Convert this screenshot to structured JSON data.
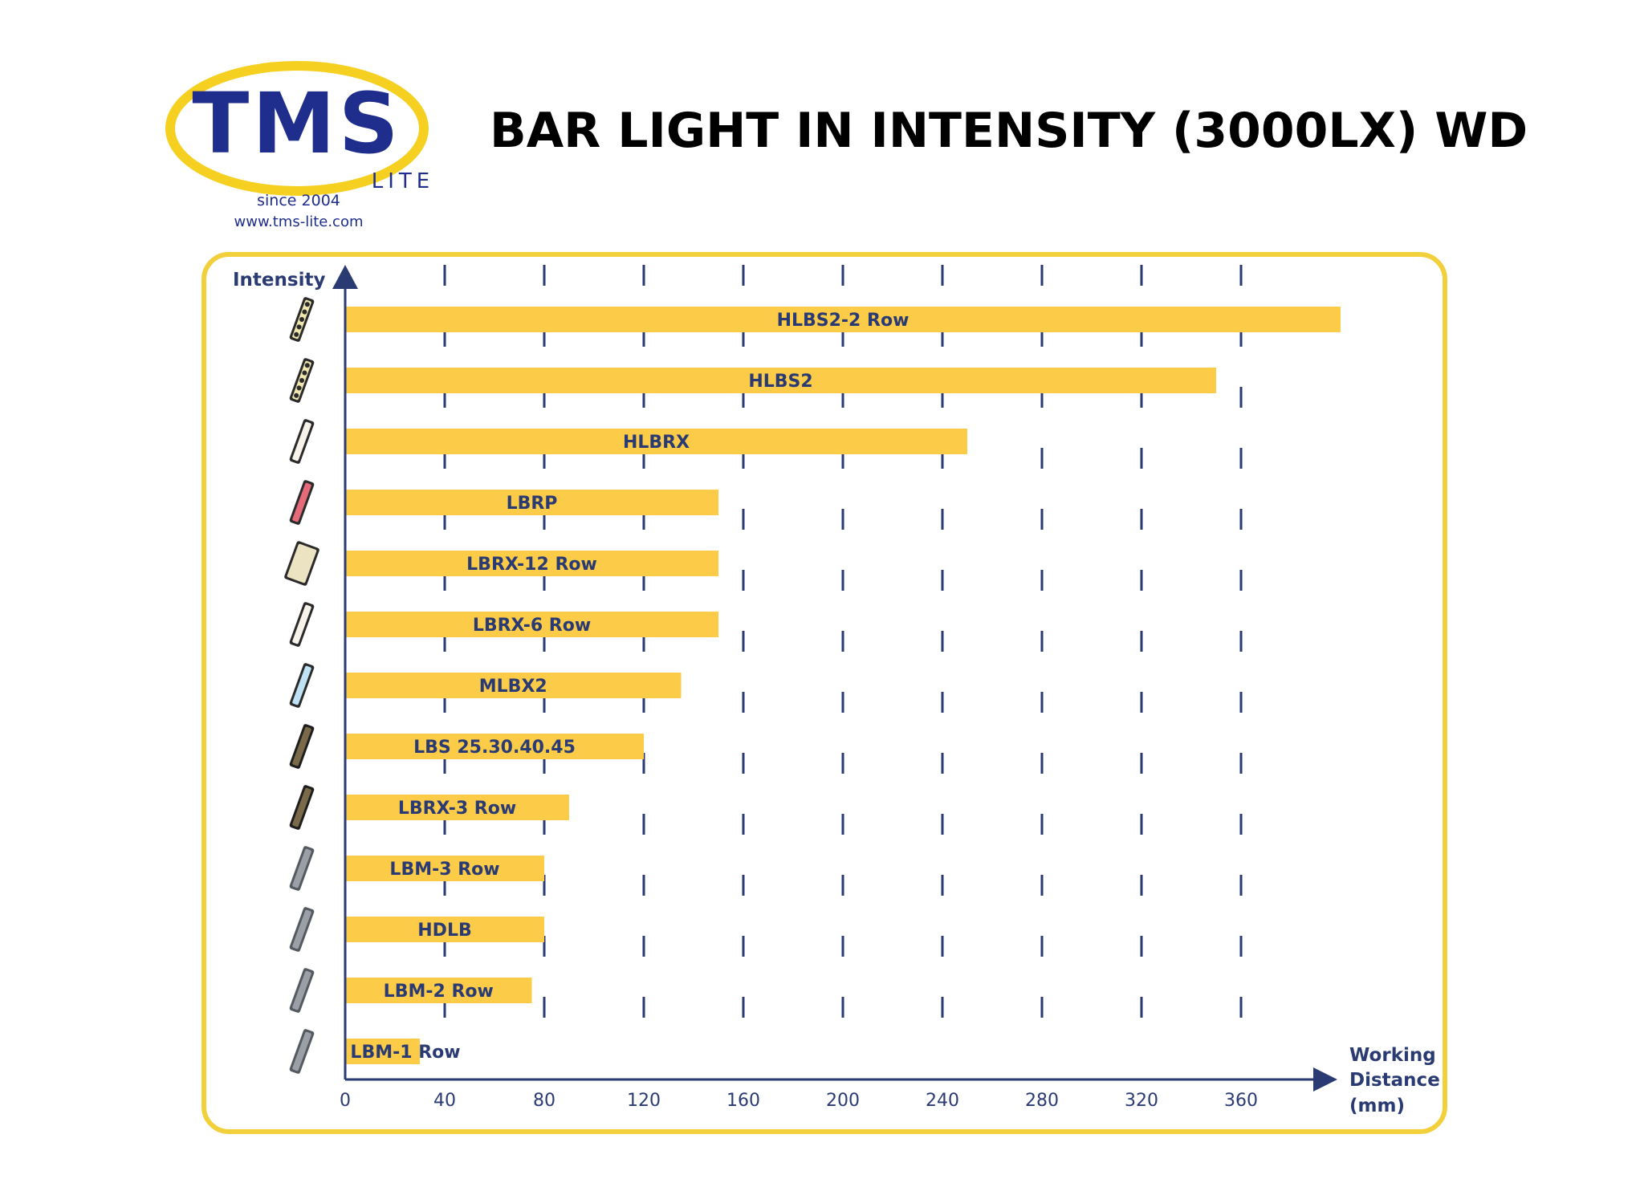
{
  "brand": {
    "logo_text": "TMS",
    "logo_sub": "LITE",
    "since": "since 2004",
    "url": "www.tms-lite.com",
    "colors": {
      "navy": "#1f2e8c",
      "yellow": "#f2d03b"
    }
  },
  "page_title": "BAR LIGHT IN INTENSITY (3000LX) WD",
  "chart_data": {
    "type": "bar",
    "orientation": "horizontal",
    "title": "BAR LIGHT IN INTENSITY (3000LX) WD",
    "ylabel": "Intensity",
    "xlabel_lines": [
      "Working",
      "Distance",
      "(mm)"
    ],
    "xlim": [
      0,
      400
    ],
    "xticks": [
      0,
      40,
      80,
      120,
      160,
      200,
      240,
      280,
      320,
      360
    ],
    "grid": "vertical-dashed",
    "bar_color": "#fccb47",
    "categories": [
      "HLBS2-2 Row",
      "HLBS2",
      "HLBRX",
      "LBRP",
      "LBRX-12 Row",
      "LBRX-6 Row",
      "MLBX2",
      "LBS 25.30.40.45",
      "LBRX-3 Row",
      "LBM-3 Row",
      "HDLB",
      "LBM-2 Row",
      "LBM-1 Row"
    ],
    "values": [
      400,
      350,
      250,
      150,
      150,
      150,
      135,
      120,
      90,
      80,
      80,
      75,
      30
    ],
    "icons": [
      "bar-light-dotted-icon",
      "bar-light-dotted-icon",
      "bar-light-white-icon",
      "bar-light-red-icon",
      "bar-light-wide-icon",
      "bar-light-white-icon",
      "bar-light-blue-icon",
      "bar-light-black-icon",
      "bar-light-black-icon",
      "bar-light-grey-icon",
      "bar-light-grey-icon",
      "bar-light-grey-icon",
      "bar-light-grey-icon"
    ]
  }
}
